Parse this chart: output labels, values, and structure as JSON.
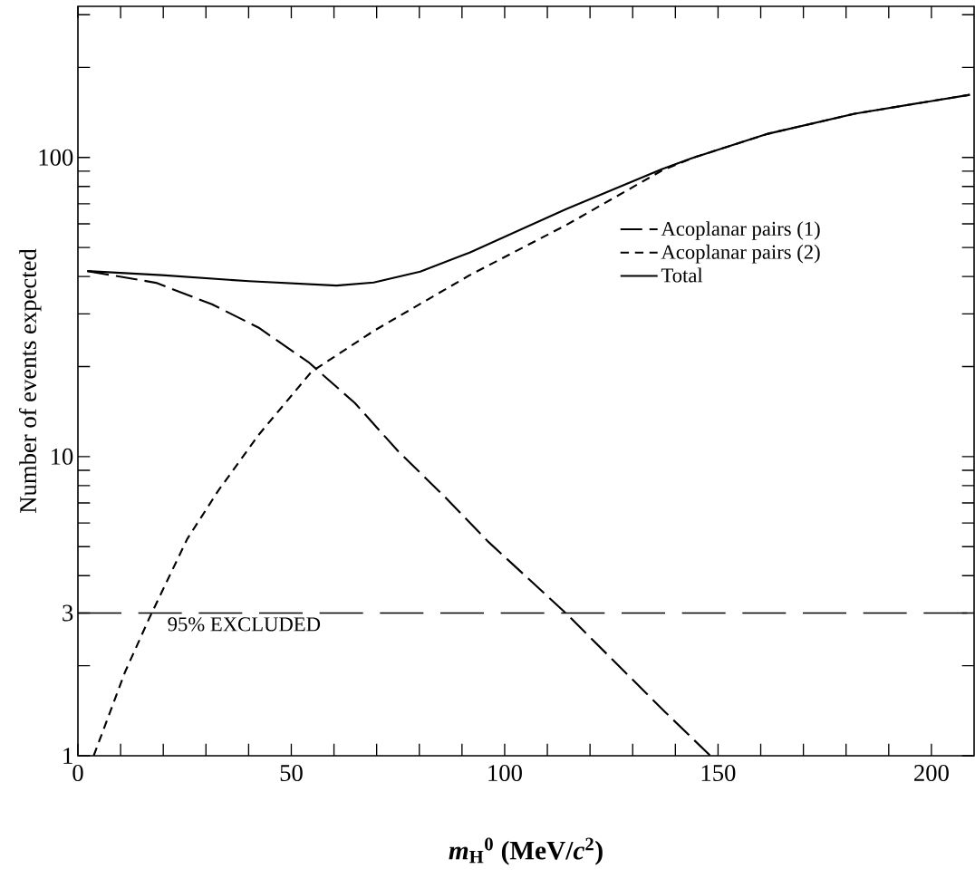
{
  "chart_data": {
    "type": "line",
    "xlabel": "*m*$_{H}$$^{0}$ (MeV/*c*$^{2}$)",
    "ylabel": "Number of events expected",
    "log": "y",
    "legend": "right",
    "grid": false,
    "xlim": [
      0,
      210
    ],
    "xticks": [
      0,
      {
        "value": 10,
        "label": null
      },
      {
        "value": 20,
        "label": null
      },
      {
        "value": 30,
        "label": null
      },
      {
        "value": 40,
        "label": null
      },
      50,
      {
        "value": 60,
        "label": null
      },
      {
        "value": 70,
        "label": null
      },
      {
        "value": 80,
        "label": null
      },
      {
        "value": 90,
        "label": null
      },
      100,
      {
        "value": 110,
        "label": null
      },
      {
        "value": 120,
        "label": null
      },
      {
        "value": 130,
        "label": null
      },
      {
        "value": 140,
        "label": null
      },
      150,
      {
        "value": 160,
        "label": null
      },
      {
        "value": 170,
        "label": null
      },
      {
        "value": 180,
        "label": null
      },
      {
        "value": 190,
        "label": null
      },
      200
    ],
    "ylim": [
      1,
      320
    ],
    "yticks": [
      1,
      {
        "value": 2,
        "label": null
      },
      3,
      {
        "value": 4,
        "label": null
      },
      {
        "value": 5,
        "label": null
      },
      {
        "value": 6,
        "label": null
      },
      {
        "value": 7,
        "label": null
      },
      {
        "value": 8,
        "label": null
      },
      {
        "value": 9,
        "label": null
      },
      10,
      {
        "value": 20,
        "label": null
      },
      {
        "value": 30,
        "label": null
      },
      {
        "value": 40,
        "label": null
      },
      {
        "value": 50,
        "label": null
      },
      {
        "value": 60,
        "label": null
      },
      {
        "value": 70,
        "label": null
      },
      {
        "value": 80,
        "label": null
      },
      {
        "value": 90,
        "label": null
      },
      100,
      {
        "value": 200,
        "label": null
      },
      {
        "value": 300,
        "label": null
      }
    ],
    "ref_lines": [
      {
        "axis": "y",
        "value": 3,
        "label": "95% EXCLUDED",
        "line_style": "dashed",
        "color": "#000000"
      }
    ],
    "series": [
      {
        "name": "Acoplanar pairs (1)",
        "color": "#000000",
        "line_style": "dashed",
        "x": [
          2.2,
          18.3,
          31.4,
          42.3,
          54,
          64.9,
          75.1,
          85.3,
          96.1,
          114.3,
          137.6,
          148.2
        ],
        "values": [
          41.7,
          38.1,
          32.3,
          27,
          20.7,
          15.1,
          10.4,
          7.5,
          5.2,
          3,
          1.4,
          1
        ]
      },
      {
        "name": "Acoplanar pairs (2)",
        "color": "#000000",
        "line_style": "dashed",
        "x": [
          3.7,
          11,
          16.8,
          25.6,
          32.9,
          42.3,
          54.7,
          69.3,
          91.8,
          114.3,
          136.9,
          144.4,
          161.7,
          182,
          209
        ],
        "values": [
          1,
          1.9,
          2.9,
          5.3,
          7.7,
          11.8,
          19.2,
          26.3,
          40.4,
          59.3,
          90.5,
          100,
          120,
          140,
          162
        ]
      },
      {
        "name": "Total",
        "color": "#000000",
        "line_style": "solid",
        "x": [
          2.2,
          19.7,
          40.1,
          60.6,
          69.3,
          80.2,
          91.8,
          114.4,
          136.8,
          144.4,
          161.7,
          182,
          209
        ],
        "values": [
          41.7,
          40.4,
          38.6,
          37.3,
          38.2,
          41.5,
          48.1,
          67.2,
          91.3,
          100,
          120,
          140,
          162
        ]
      }
    ]
  }
}
